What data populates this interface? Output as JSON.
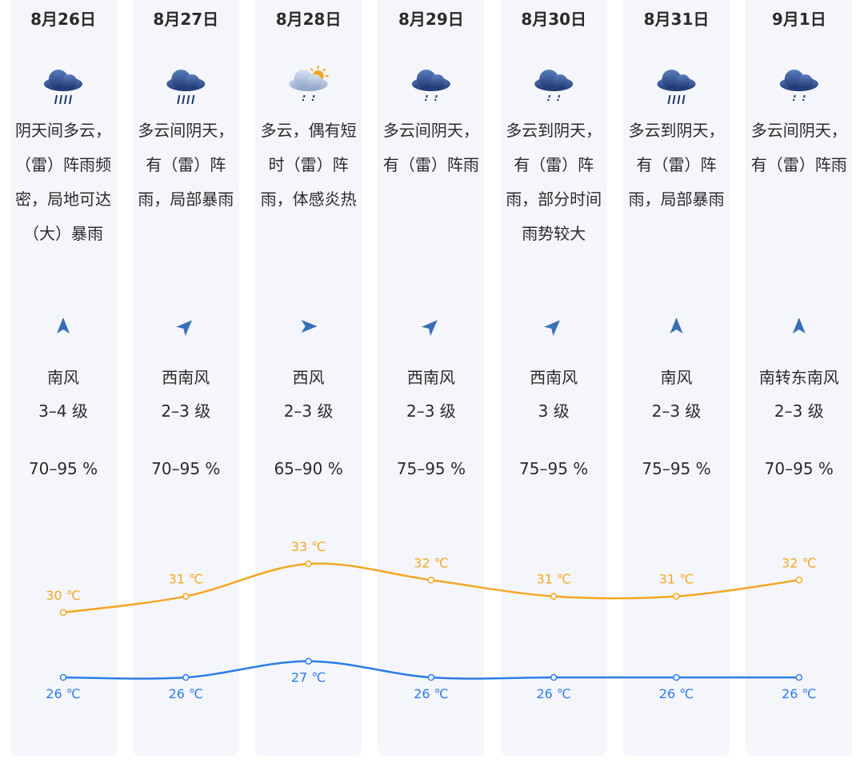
{
  "forecast": [
    {
      "date": "8月26日",
      "weather": "阴天间多云，（雷）阵雨频密，局地可达（大）暴雨",
      "wind": "南风",
      "level": "3–4 级",
      "humidity": "70–95 %"
    },
    {
      "date": "8月27日",
      "weather": "多云间阴天，有（雷）阵雨，局部暴雨",
      "wind": "西南风",
      "level": "2–3 级",
      "humidity": "70–95 %"
    },
    {
      "date": "8月28日",
      "weather": "多云，偶有短时（雷）阵雨，体感炎热",
      "wind": "西风",
      "level": "2–3 级",
      "humidity": "65–90 %"
    },
    {
      "date": "8月29日",
      "weather": "多云间阴天，有（雷）阵雨",
      "wind": "西南风",
      "level": "2–3 级",
      "humidity": "75–95 %"
    },
    {
      "date": "8月30日",
      "weather": "多云到阴天，有（雷）阵雨，部分时间雨势较大",
      "wind": "西南风",
      "level": "3 级",
      "humidity": "75–95 %"
    },
    {
      "date": "8月31日",
      "weather": "多云到阴天，有（雷）阵雨，局部暴雨",
      "wind": "南风",
      "level": "2–3 级",
      "humidity": "75–95 %"
    },
    {
      "date": "9月1日",
      "weather": "多云间阴天，有（雷）阵雨",
      "wind": "南转东南风",
      "level": "2–3 级",
      "humidity": "70–95 %"
    }
  ],
  "chart_data": {
    "type": "line",
    "series": [
      {
        "color": "#f5a623",
        "values": [
          30,
          31,
          33,
          32,
          31,
          31,
          32
        ],
        "value_labels": [
          "30 ℃",
          "31 ℃",
          "33 ℃",
          "32 ℃",
          "31 ℃",
          "31 ℃",
          "32 ℃"
        ]
      },
      {
        "color": "#2b7de9",
        "values": [
          26,
          26,
          27,
          26,
          26,
          26,
          26
        ],
        "value_labels": [
          "26 ℃",
          "26 ℃",
          "27 ℃",
          "26 ℃",
          "26 ℃",
          "26 ℃",
          "26 ℃"
        ]
      }
    ]
  }
}
